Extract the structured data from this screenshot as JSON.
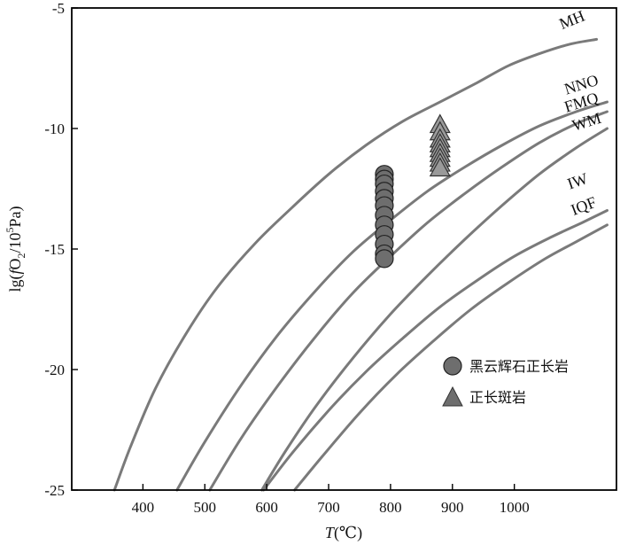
{
  "chart_data": {
    "type": "line",
    "xlabel_italic": "T",
    "xlabel_unit": "(℃)",
    "ylabel_parts": {
      "pre": "lg(",
      "italic": "f",
      "mid": "O",
      "sub": "2",
      "slash": "/10",
      "sup": "5",
      "post": "Pa)"
    },
    "xlim": [
      285,
      1165
    ],
    "ylim": [
      -25,
      -5
    ],
    "x_ticks": [
      400,
      500,
      600,
      700,
      800,
      900,
      1000
    ],
    "y_ticks": [
      -5,
      -10,
      -15,
      -20,
      -25
    ],
    "x_tick_labels": [
      "400",
      "500",
      "600",
      "700",
      "800",
      "900",
      "1000"
    ],
    "y_tick_labels": [
      "-5",
      "-10",
      "-15",
      "-20",
      "-25"
    ],
    "grid": false,
    "legend_position": "lower-right",
    "curve_color": "#7a7a7a",
    "marker_color": "#6e6e6e",
    "buffers": [
      {
        "name": "MH",
        "points": [
          [
            354,
            -25
          ],
          [
            380,
            -23.2
          ],
          [
            420,
            -20.8
          ],
          [
            470,
            -18.5
          ],
          [
            520,
            -16.6
          ],
          [
            580,
            -14.8
          ],
          [
            640,
            -13.3
          ],
          [
            700,
            -11.9
          ],
          [
            760,
            -10.7
          ],
          [
            820,
            -9.7
          ],
          [
            880,
            -8.9
          ],
          [
            940,
            -8.1
          ],
          [
            990,
            -7.4
          ],
          [
            1040,
            -6.9
          ],
          [
            1090,
            -6.5
          ],
          [
            1133,
            -6.3
          ]
        ]
      },
      {
        "name": "NNO",
        "points": [
          [
            455,
            -25
          ],
          [
            500,
            -23.0
          ],
          [
            560,
            -20.6
          ],
          [
            620,
            -18.5
          ],
          [
            680,
            -16.7
          ],
          [
            740,
            -15.1
          ],
          [
            800,
            -13.8
          ],
          [
            860,
            -12.6
          ],
          [
            920,
            -11.6
          ],
          [
            980,
            -10.7
          ],
          [
            1040,
            -9.9
          ],
          [
            1100,
            -9.3
          ],
          [
            1150,
            -8.9
          ]
        ]
      },
      {
        "name": "FMQ",
        "points": [
          [
            508,
            -25
          ],
          [
            560,
            -22.8
          ],
          [
            620,
            -20.6
          ],
          [
            680,
            -18.6
          ],
          [
            740,
            -16.8
          ],
          [
            800,
            -15.3
          ],
          [
            860,
            -13.9
          ],
          [
            920,
            -12.7
          ],
          [
            980,
            -11.6
          ],
          [
            1040,
            -10.6
          ],
          [
            1100,
            -9.8
          ],
          [
            1150,
            -9.3
          ]
        ]
      },
      {
        "name": "WM",
        "points": [
          [
            592,
            -25
          ],
          [
            630,
            -23.4
          ],
          [
            680,
            -21.5
          ],
          [
            740,
            -19.5
          ],
          [
            800,
            -17.7
          ],
          [
            860,
            -16.1
          ],
          [
            920,
            -14.6
          ],
          [
            980,
            -13.2
          ],
          [
            1040,
            -11.9
          ],
          [
            1100,
            -10.8
          ],
          [
            1150,
            -10.0
          ]
        ]
      },
      {
        "name": "IW",
        "points": [
          [
            595,
            -25
          ],
          [
            640,
            -23.5
          ],
          [
            700,
            -21.7
          ],
          [
            760,
            -20.1
          ],
          [
            820,
            -18.7
          ],
          [
            880,
            -17.4
          ],
          [
            940,
            -16.3
          ],
          [
            1000,
            -15.3
          ],
          [
            1060,
            -14.5
          ],
          [
            1110,
            -13.9
          ],
          [
            1150,
            -13.4
          ]
        ]
      },
      {
        "name": "IQF",
        "points": [
          [
            645,
            -25
          ],
          [
            690,
            -23.6
          ],
          [
            750,
            -21.8
          ],
          [
            810,
            -20.2
          ],
          [
            870,
            -18.8
          ],
          [
            930,
            -17.5
          ],
          [
            990,
            -16.4
          ],
          [
            1050,
            -15.4
          ],
          [
            1100,
            -14.7
          ],
          [
            1150,
            -14.0
          ]
        ]
      }
    ],
    "series": [
      {
        "name": "黑云辉石正长岩",
        "marker": "circle",
        "points": [
          [
            790,
            -11.9
          ],
          [
            790,
            -12.1
          ],
          [
            790,
            -12.3
          ],
          [
            790,
            -12.6
          ],
          [
            790,
            -12.9
          ],
          [
            790,
            -13.2
          ],
          [
            790,
            -13.6
          ],
          [
            790,
            -14.0
          ],
          [
            790,
            -14.4
          ],
          [
            790,
            -14.8
          ],
          [
            790,
            -15.2
          ],
          [
            790,
            -15.4
          ]
        ]
      },
      {
        "name": "正长斑岩",
        "marker": "triangle",
        "points": [
          [
            880,
            -9.8
          ],
          [
            880,
            -10.1
          ],
          [
            880,
            -10.4
          ],
          [
            880,
            -10.6
          ],
          [
            880,
            -10.8
          ],
          [
            880,
            -11.0
          ],
          [
            880,
            -11.2
          ],
          [
            880,
            -11.4
          ],
          [
            880,
            -11.6
          ]
        ]
      }
    ]
  }
}
